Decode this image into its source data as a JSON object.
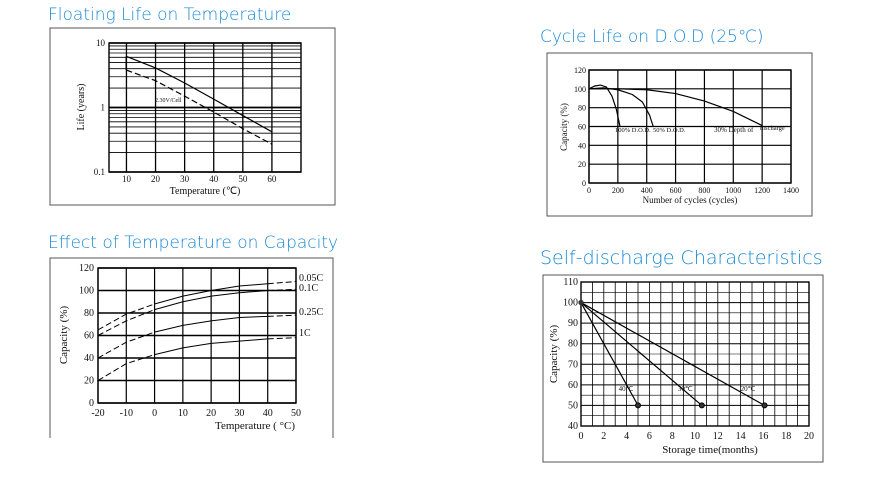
{
  "colors": {
    "title": "#1a8ad4",
    "line": "#000000",
    "label_orange": "#d2691e",
    "label_blue": "#1f4e9a"
  },
  "chart_data": [
    {
      "type": "line",
      "title": "Floating Life on Temperature",
      "xlabel": "Temperature (℃)",
      "ylabel": "Life (years)",
      "xlim": [
        4,
        70
      ],
      "ylim": [
        0.1,
        10
      ],
      "yscale": "log",
      "grid": true,
      "x_ticks": [
        "10",
        "20",
        "30",
        "40",
        "50",
        "60"
      ],
      "y_ticks": [
        "0.1",
        "1",
        "10"
      ],
      "annotation": "2.30V/Cell",
      "series": [
        {
          "style": "solid",
          "x": [
            10,
            20,
            30,
            40,
            50,
            60
          ],
          "y": [
            6.2,
            4.1,
            2.4,
            1.35,
            0.75,
            0.42
          ]
        },
        {
          "style": "dashed",
          "x": [
            10,
            20,
            30,
            40,
            50,
            60
          ],
          "y": [
            3.8,
            2.6,
            1.5,
            0.85,
            0.47,
            0.27
          ]
        }
      ]
    },
    {
      "type": "line",
      "title": "Cycle Life on D.O.D (25℃)",
      "xlabel": "Number of cycles (cycles)",
      "ylabel": "Capacity (%)",
      "xlim": [
        0,
        1400
      ],
      "ylim": [
        0,
        120
      ],
      "grid": true,
      "x_ticks": [
        "0",
        "200",
        "400",
        "600",
        "800",
        "1000",
        "1200",
        "1400"
      ],
      "y_ticks": [
        "0",
        "20",
        "40",
        "60",
        "80",
        "100",
        "120"
      ],
      "series": [
        {
          "name": "100% D.O.D.",
          "x": [
            0,
            40,
            80,
            120,
            160,
            190,
            215
          ],
          "y": [
            100,
            103,
            104,
            102,
            92,
            78,
            60
          ]
        },
        {
          "name": "50% D.O.D.",
          "x": [
            0,
            100,
            200,
            300,
            370,
            420,
            445
          ],
          "y": [
            100,
            101,
            99,
            94,
            86,
            72,
            60
          ]
        },
        {
          "name": "30% Depth of discharge",
          "x": [
            0,
            200,
            400,
            600,
            800,
            1000,
            1200
          ],
          "y": [
            100,
            100,
            99,
            95,
            87,
            76,
            61
          ]
        }
      ],
      "labels": [
        "100% D.O.D.",
        "50% D.O.D.",
        "30% Depth of",
        "discharge"
      ]
    },
    {
      "type": "line",
      "title": "Effect of Temperature on Capacity",
      "xlabel": "Temperature ( °C)",
      "ylabel": "Capacity (%)",
      "xlim": [
        -20,
        50
      ],
      "ylim": [
        0,
        120
      ],
      "grid": true,
      "x_ticks": [
        "-20",
        "-10",
        "0",
        "10",
        "20",
        "30",
        "40",
        "50"
      ],
      "y_ticks": [
        "0",
        "20",
        "40",
        "60",
        "80",
        "100",
        "120"
      ],
      "series": [
        {
          "name": "0.05C",
          "x": [
            -20,
            -10,
            0,
            10,
            20,
            30,
            40,
            50
          ],
          "y": [
            65,
            79,
            88,
            95,
            100,
            104,
            106,
            108
          ]
        },
        {
          "name": "0.1C",
          "x": [
            -20,
            -10,
            0,
            10,
            20,
            30,
            40,
            50
          ],
          "y": [
            60,
            73,
            83,
            90,
            95,
            98,
            100,
            101
          ]
        },
        {
          "name": "0.25C",
          "x": [
            -20,
            -10,
            0,
            10,
            20,
            30,
            40,
            50
          ],
          "y": [
            40,
            54,
            63,
            69,
            73,
            76,
            77,
            78
          ]
        },
        {
          "name": "1C",
          "x": [
            -20,
            -10,
            0,
            10,
            20,
            30,
            40,
            50
          ],
          "y": [
            20,
            35,
            43,
            49,
            53,
            55,
            57,
            58
          ]
        }
      ]
    },
    {
      "type": "line",
      "title": "Self-discharge Characteristics",
      "xlabel": "Storage time(months)",
      "ylabel": "Capacity (%)",
      "xlim": [
        0,
        20
      ],
      "ylim": [
        40,
        110
      ],
      "grid": true,
      "x_ticks": [
        "0",
        "2",
        "4",
        "6",
        "8",
        "10",
        "12",
        "14",
        "16",
        "18",
        "20"
      ],
      "y_ticks": [
        "40",
        "50",
        "60",
        "70",
        "80",
        "90",
        "100",
        "110"
      ],
      "series": [
        {
          "name": "40℃",
          "x": [
            0,
            5
          ],
          "y": [
            100,
            50
          ]
        },
        {
          "name": "30℃",
          "x": [
            0,
            10.6
          ],
          "y": [
            100,
            50
          ]
        },
        {
          "name": "20℃",
          "x": [
            0,
            16.1
          ],
          "y": [
            100,
            50
          ]
        }
      ]
    }
  ]
}
